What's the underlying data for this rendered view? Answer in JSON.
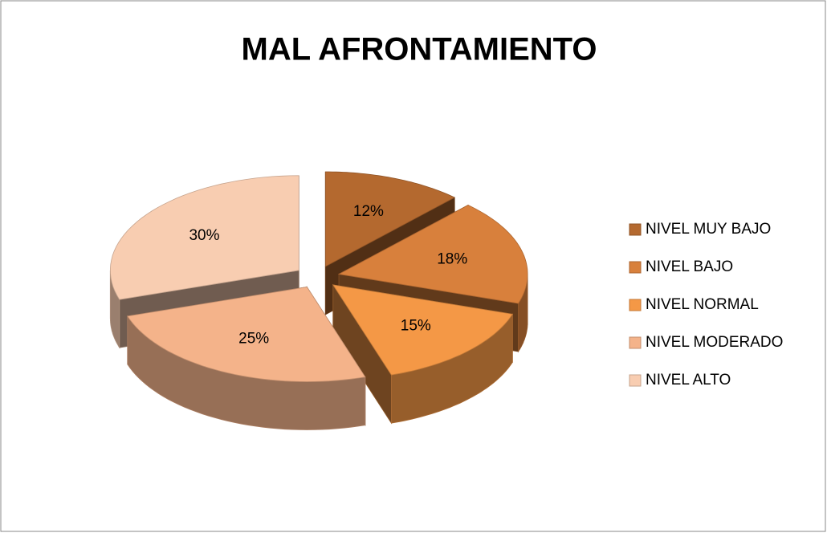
{
  "chart_data": {
    "type": "pie",
    "title": "MAL AFRONTAMIENTO",
    "categories": [
      "NIVEL MUY BAJO",
      "NIVEL BAJO",
      "NIVEL NORMAL",
      "NIVEL MODERADO",
      "NIVEL ALTO"
    ],
    "values": [
      12,
      18,
      15,
      25,
      30
    ],
    "value_labels": [
      "12%",
      "18%",
      "15%",
      "25%",
      "30%"
    ],
    "colors": [
      "#b4692f",
      "#d8803c",
      "#f49846",
      "#f4b38a",
      "#f8cdb1"
    ],
    "legend": "right"
  }
}
